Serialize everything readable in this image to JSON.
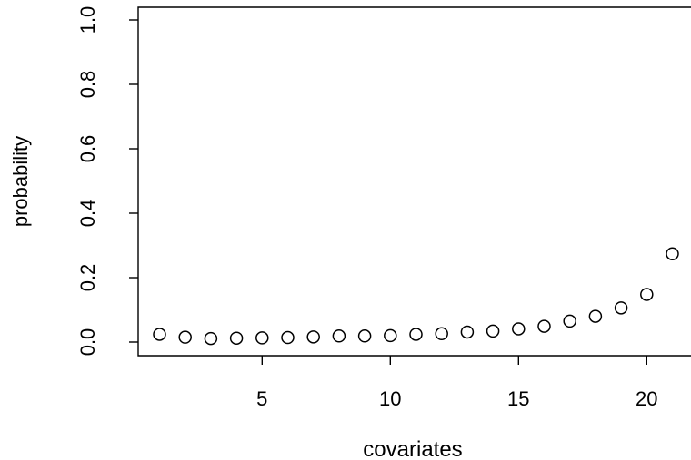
{
  "chart_data": {
    "type": "scatter",
    "title": "",
    "xlabel": "covariates",
    "ylabel": "probability",
    "xlim": [
      1,
      21
    ],
    "ylim": [
      0,
      1
    ],
    "x_ticks": [
      5,
      10,
      15,
      20
    ],
    "y_ticks": [
      0.0,
      0.2,
      0.4,
      0.6,
      0.8,
      1.0
    ],
    "x_tick_labels": [
      "5",
      "10",
      "15",
      "20"
    ],
    "y_tick_labels": [
      "0.0",
      "0.2",
      "0.4",
      "0.6",
      "0.8",
      "1.0"
    ],
    "grid": false,
    "marker": "open-circle",
    "marker_color": "#000000",
    "x": [
      1,
      2,
      3,
      4,
      5,
      6,
      7,
      8,
      9,
      10,
      11,
      12,
      13,
      14,
      15,
      16,
      17,
      18,
      19,
      20,
      21
    ],
    "y": [
      0.024,
      0.015,
      0.011,
      0.012,
      0.013,
      0.014,
      0.016,
      0.019,
      0.019,
      0.02,
      0.024,
      0.026,
      0.031,
      0.034,
      0.041,
      0.049,
      0.065,
      0.08,
      0.106,
      0.148,
      0.274
    ]
  }
}
